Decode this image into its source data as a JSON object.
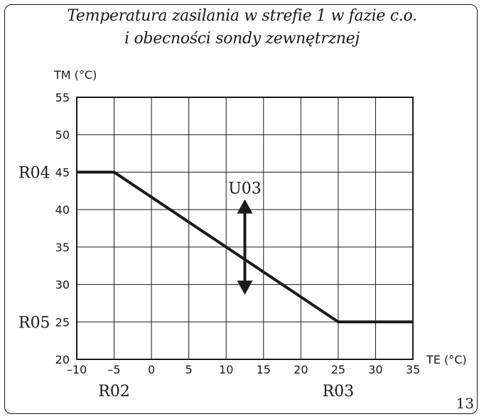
{
  "title": {
    "line1": "Temperatura zasilania w strefie 1 w fazie c.o.",
    "line2": "i obecności sondy zewnętrznej"
  },
  "page_number": "13",
  "chart_data": {
    "type": "line",
    "xlabel": "TE (°C)",
    "ylabel": "TM (°C)",
    "xlim": [
      -10,
      35
    ],
    "ylim": [
      20,
      55
    ],
    "xticks": [
      -10,
      -5,
      0,
      5,
      10,
      15,
      20,
      25,
      30,
      35
    ],
    "yticks": [
      20,
      25,
      30,
      35,
      40,
      45,
      50,
      55
    ],
    "grid": true,
    "series": [
      {
        "x": [
          -10,
          -5,
          25,
          35
        ],
        "y": [
          45,
          45,
          25,
          25
        ]
      }
    ],
    "annotations": [
      {
        "label": "R04",
        "axis": "y",
        "value": 45
      },
      {
        "label": "R05",
        "axis": "y",
        "value": 25
      },
      {
        "label": "R02",
        "axis": "x",
        "value": -5
      },
      {
        "label": "R03",
        "axis": "x",
        "value": 25
      },
      {
        "label": "U03",
        "type": "double-arrow",
        "x": 12.5,
        "y_from": 29,
        "y_to": 41
      }
    ],
    "colors": {
      "line": "#1a1a1a",
      "grid": "#1a1a1a"
    }
  }
}
